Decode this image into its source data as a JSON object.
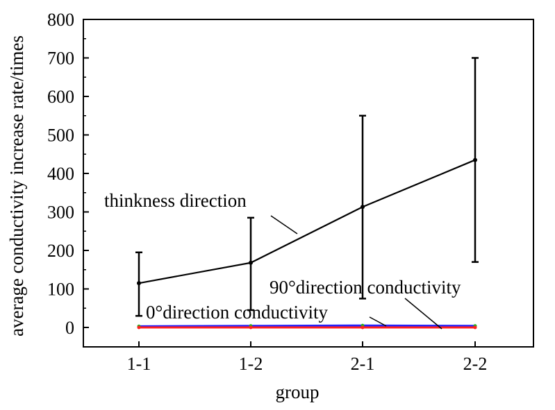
{
  "chart_data": {
    "type": "line",
    "xlabel": "group",
    "ylabel": "average conductivity increase rate/times",
    "categories": [
      "1-1",
      "1-2",
      "2-1",
      "2-2"
    ],
    "ylim": [
      0,
      800
    ],
    "yticks": [
      0,
      100,
      200,
      300,
      400,
      500,
      600,
      700,
      800
    ],
    "grid": false,
    "legend": "none",
    "series": [
      {
        "name": "thinkness direction",
        "color": "#000000",
        "values": [
          115,
          168,
          313,
          435
        ],
        "err_low": [
          30,
          45,
          75,
          170
        ],
        "err_high": [
          195,
          285,
          550,
          700
        ]
      },
      {
        "name": "90°direction conductivity",
        "color": "#2020ff",
        "values": [
          3,
          4,
          5,
          4
        ]
      },
      {
        "name": "0°direction conductivity",
        "color": "#ff2020",
        "values": [
          0,
          0,
          0,
          0
        ]
      }
    ],
    "annotations": {
      "thickness": "thinkness direction",
      "deg90": "90°direction conductivity",
      "deg0": "0°direction conductivity"
    }
  }
}
